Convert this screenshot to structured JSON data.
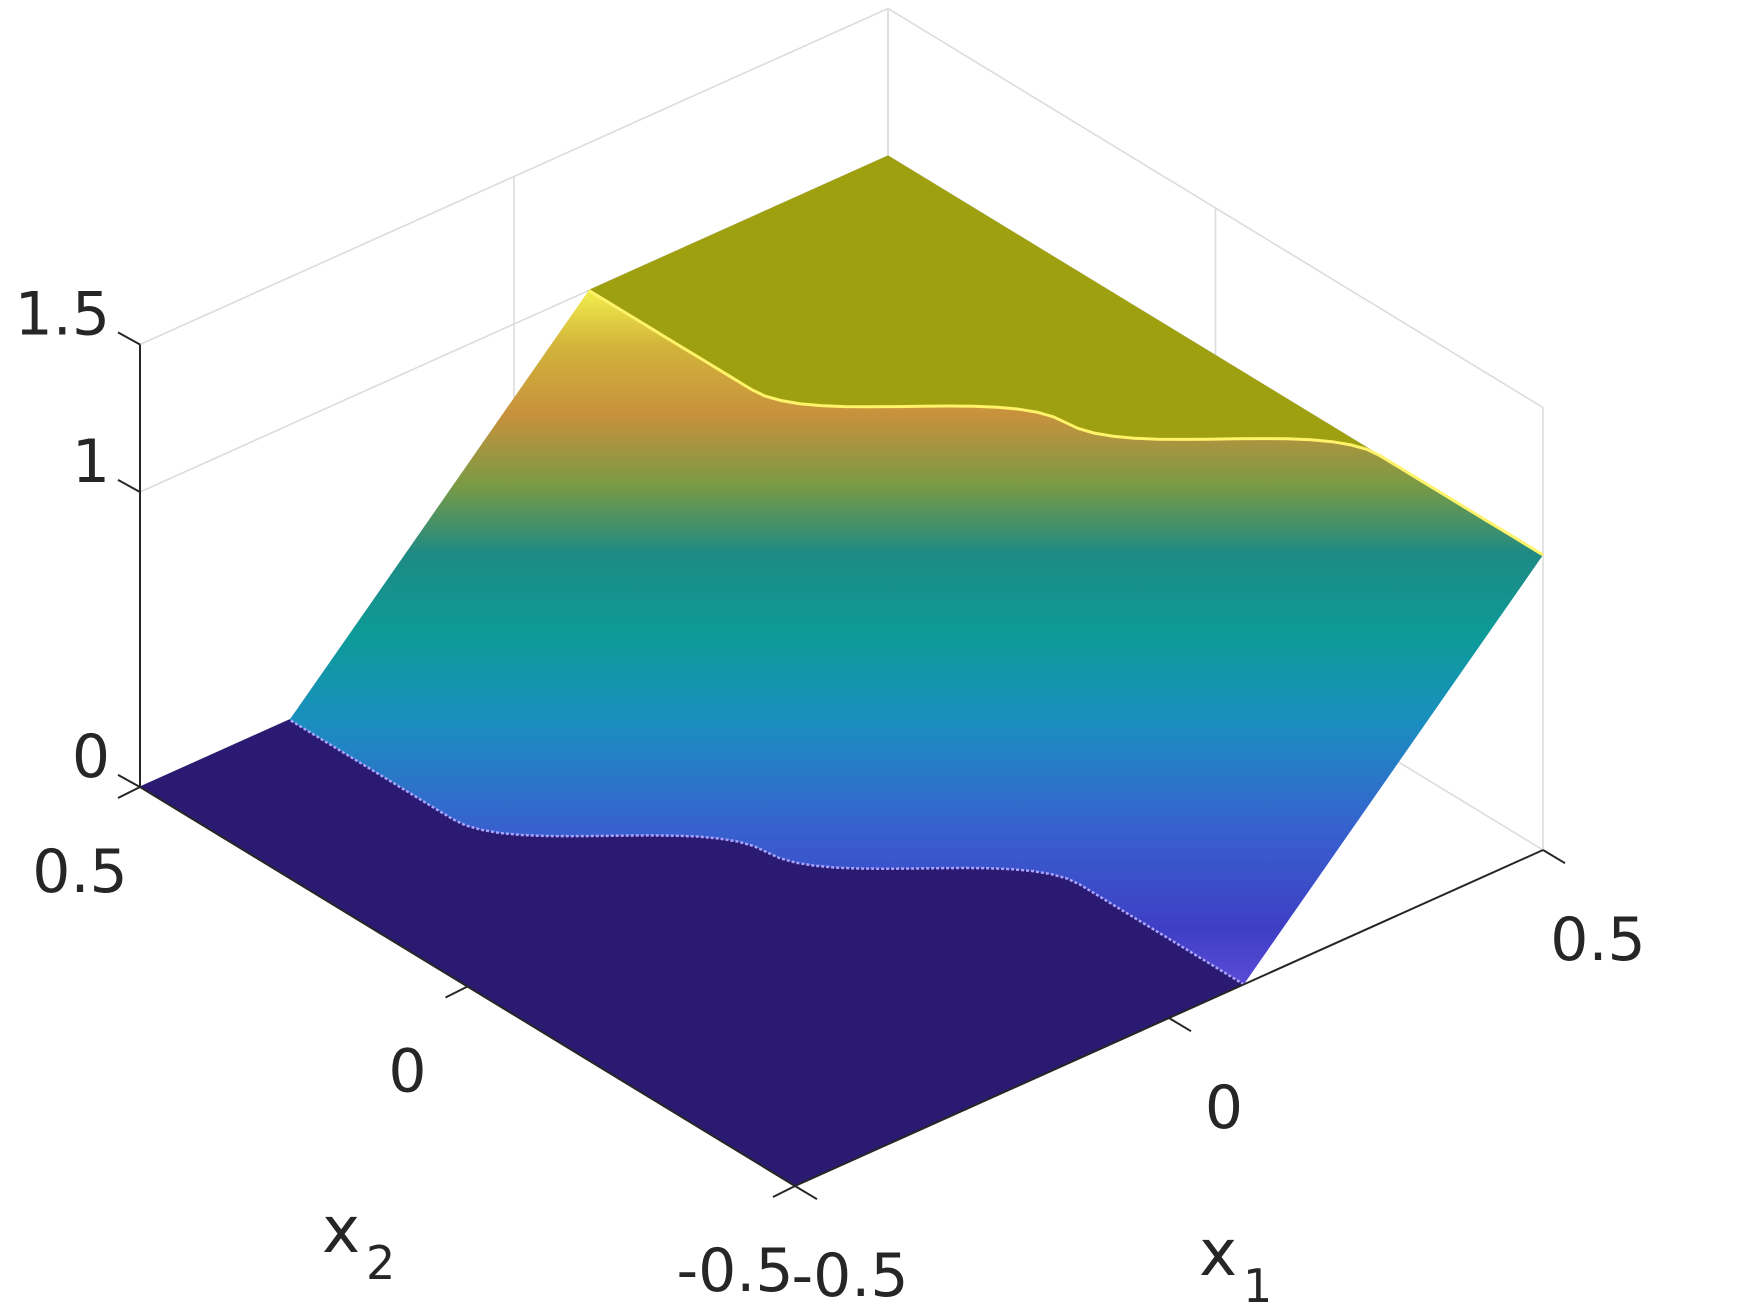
{
  "chart_data": {
    "type": "surface",
    "title": "",
    "xlabel": "x",
    "xlabel_sub": "1",
    "ylabel": "x",
    "ylabel_sub": "2",
    "zlabel": "",
    "xlim": [
      -0.5,
      0.5
    ],
    "ylim": [
      -0.5,
      0.5
    ],
    "zlim": [
      0,
      1.5
    ],
    "x_ticks": [
      -0.5,
      0,
      0.5
    ],
    "x_tick_labels": [
      "-0.5",
      "0",
      "0.5"
    ],
    "y_ticks": [
      -0.5,
      0,
      0.5
    ],
    "y_tick_labels": [
      "-0.5",
      "0",
      "0.5"
    ],
    "z_ticks": [
      0,
      1,
      1.5
    ],
    "z_tick_labels": [
      "0",
      "1",
      "1.5"
    ],
    "grid": true,
    "colormap": "parula",
    "surface": {
      "low_value": 0,
      "high_value": 1,
      "front_curve": [
        {
          "x2": 0.5,
          "x1": -0.3
        },
        {
          "x2": 0.25,
          "x1": -0.3
        },
        {
          "x2": 0.0,
          "x1": -0.1
        },
        {
          "x2": -0.25,
          "x1": 0.1
        },
        {
          "x2": -0.5,
          "x1": 0.1
        }
      ],
      "transition_width_x1": 0.4
    },
    "colors": {
      "low": "#2b1a72",
      "high": "#9fa010",
      "axis": "#262626",
      "grid": "#dcdcdc"
    }
  }
}
